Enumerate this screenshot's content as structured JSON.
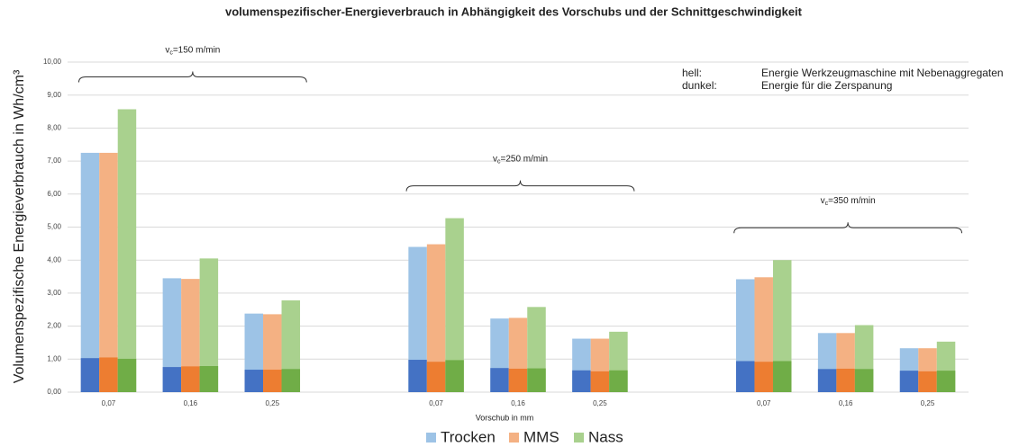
{
  "chart_data": {
    "type": "bar",
    "title": "volumenspezifischer-Energieverbrauch in Abhängigkeit des Vorschubs und der Schnittgeschwindigkeit",
    "y_label": "Volumenspezifische Energieverbrauch in Wh/cm³",
    "x_label": "Vorschub in mm",
    "categories": [
      "0,07",
      "0,16",
      "0,25",
      null,
      "0,07",
      "0,16",
      "0,25",
      null,
      "0,07",
      "0,16",
      "0,25"
    ],
    "ylim": [
      0,
      10
    ],
    "yticks": [
      {
        "value": 0,
        "label": "0,00"
      },
      {
        "value": 1,
        "label": "1,00"
      },
      {
        "value": 2,
        "label": "2,00"
      },
      {
        "value": 3,
        "label": "3,00"
      },
      {
        "value": 4,
        "label": "4,00"
      },
      {
        "value": 5,
        "label": "5,00"
      },
      {
        "value": 6,
        "label": "6,00"
      },
      {
        "value": 7,
        "label": "7,00"
      },
      {
        "value": 8,
        "label": "8,00"
      },
      {
        "value": 9,
        "label": "9,00"
      },
      {
        "value": 10,
        "label": "10,00"
      }
    ],
    "grid": true,
    "series": [
      {
        "name": "Trocken",
        "color": "#9dc3e6",
        "dark_color": "#4472c4",
        "values": [
          7.25,
          3.45,
          2.38,
          null,
          4.4,
          2.23,
          1.62,
          null,
          3.42,
          1.79,
          1.33
        ],
        "dark_values": [
          1.03,
          0.76,
          0.68,
          null,
          0.98,
          0.73,
          0.66,
          null,
          0.94,
          0.7,
          0.65
        ]
      },
      {
        "name": "MMS",
        "color": "#f4b183",
        "dark_color": "#ed7d31",
        "values": [
          7.25,
          3.43,
          2.36,
          null,
          4.48,
          2.25,
          1.62,
          null,
          3.48,
          1.79,
          1.33
        ],
        "dark_values": [
          1.05,
          0.78,
          0.68,
          null,
          0.92,
          0.71,
          0.63,
          null,
          0.92,
          0.71,
          0.63
        ]
      },
      {
        "name": "Nass",
        "color": "#a9d18e",
        "dark_color": "#70ad47",
        "values": [
          8.57,
          4.05,
          2.78,
          null,
          5.27,
          2.58,
          1.83,
          null,
          4.0,
          2.03,
          1.53
        ],
        "dark_values": [
          1.01,
          0.79,
          0.7,
          null,
          0.97,
          0.72,
          0.66,
          null,
          0.94,
          0.7,
          0.65
        ]
      }
    ],
    "annotations": [
      {
        "symbol": "v",
        "subscript": "c",
        "text": "=150 m/min"
      },
      {
        "symbol": "v",
        "subscript": "c",
        "text": "=250 m/min"
      },
      {
        "symbol": "v",
        "subscript": "c",
        "text": "=350 m/min"
      }
    ],
    "note": [
      {
        "key": "hell:",
        "text": "Energie Werkzeugmaschine mit Nebenaggregaten"
      },
      {
        "key": "dunkel:",
        "text": "Energie für die Zerspanung"
      }
    ]
  }
}
